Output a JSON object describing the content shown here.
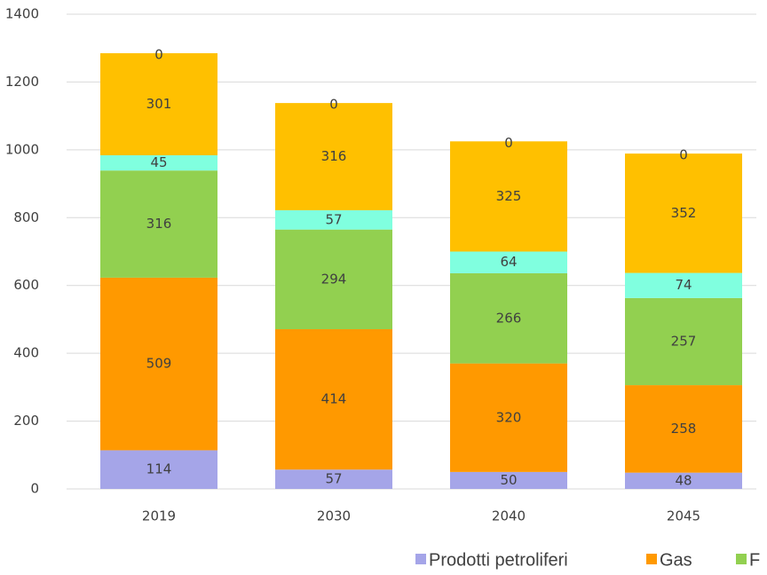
{
  "chart_data": {
    "type": "stacked_bar",
    "categories": [
      "2019",
      "2030",
      "2040",
      "2045"
    ],
    "series": [
      {
        "name": "Prodotti petroliferi",
        "color": "#a5a5e8",
        "values": [
          114,
          57,
          50,
          48
        ]
      },
      {
        "name": "Gas",
        "color": "#ff9900",
        "values": [
          509,
          414,
          320,
          258
        ]
      },
      {
        "name": "F",
        "color": "#92d050",
        "values": [
          316,
          294,
          266,
          257
        ]
      },
      {
        "color": "#80ffdf",
        "values": [
          45,
          57,
          64,
          74
        ]
      },
      {
        "color": "#ffc000",
        "values": [
          301,
          316,
          325,
          352
        ]
      },
      {
        "color": "#4472c4",
        "values": [
          0,
          0,
          0,
          0
        ]
      }
    ],
    "ylim": [
      0,
      1400
    ],
    "yticks": [
      0,
      200,
      400,
      600,
      800,
      1000,
      1200,
      1400
    ],
    "grid": true
  }
}
